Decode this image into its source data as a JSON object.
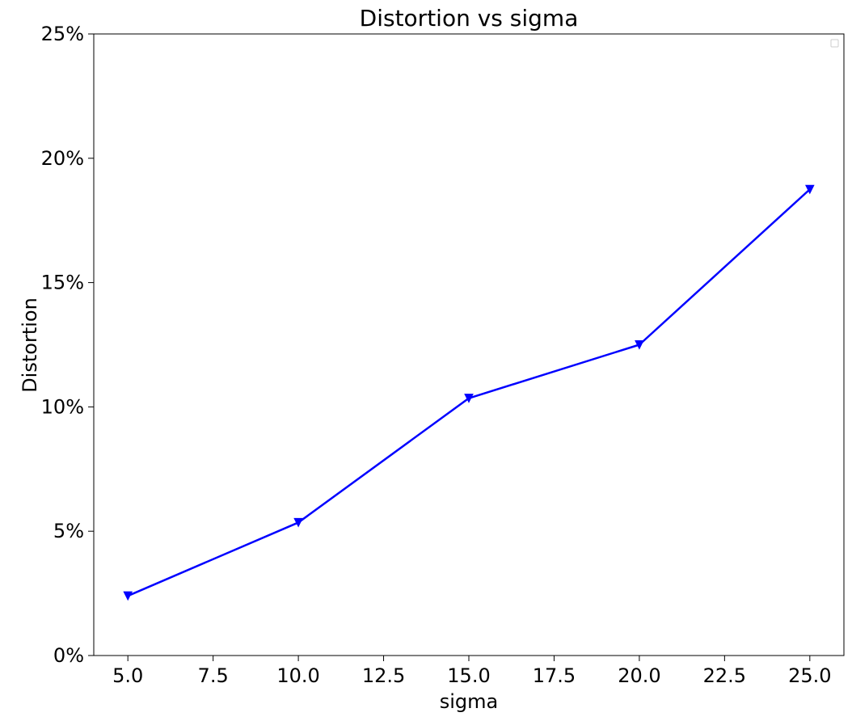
{
  "chart_data": {
    "type": "line",
    "title": "Distortion vs sigma",
    "xlabel": "sigma",
    "ylabel": "Distortion",
    "xlim": [
      4.0,
      26.0
    ],
    "ylim": [
      0,
      0.25
    ],
    "x_ticks": [
      5.0,
      7.5,
      10.0,
      12.5,
      15.0,
      17.5,
      20.0,
      22.5,
      25.0
    ],
    "x_tick_labels": [
      "5.0",
      "7.5",
      "10.0",
      "12.5",
      "15.0",
      "17.5",
      "20.0",
      "22.5",
      "25.0"
    ],
    "y_ticks": [
      0,
      0.05,
      0.1,
      0.15,
      0.2,
      0.25
    ],
    "y_tick_labels": [
      "0%",
      "5%",
      "10%",
      "15%",
      "20%",
      "25%"
    ],
    "grid": false,
    "legend": {
      "placement": "top-right",
      "entries": []
    },
    "series": [
      {
        "color": "#0000ff",
        "marker": "triangle-down",
        "x": [
          5.0,
          10.0,
          15.0,
          20.0,
          25.0
        ],
        "y": [
          0.024,
          0.0535,
          0.1035,
          0.125,
          0.1875
        ]
      }
    ]
  }
}
